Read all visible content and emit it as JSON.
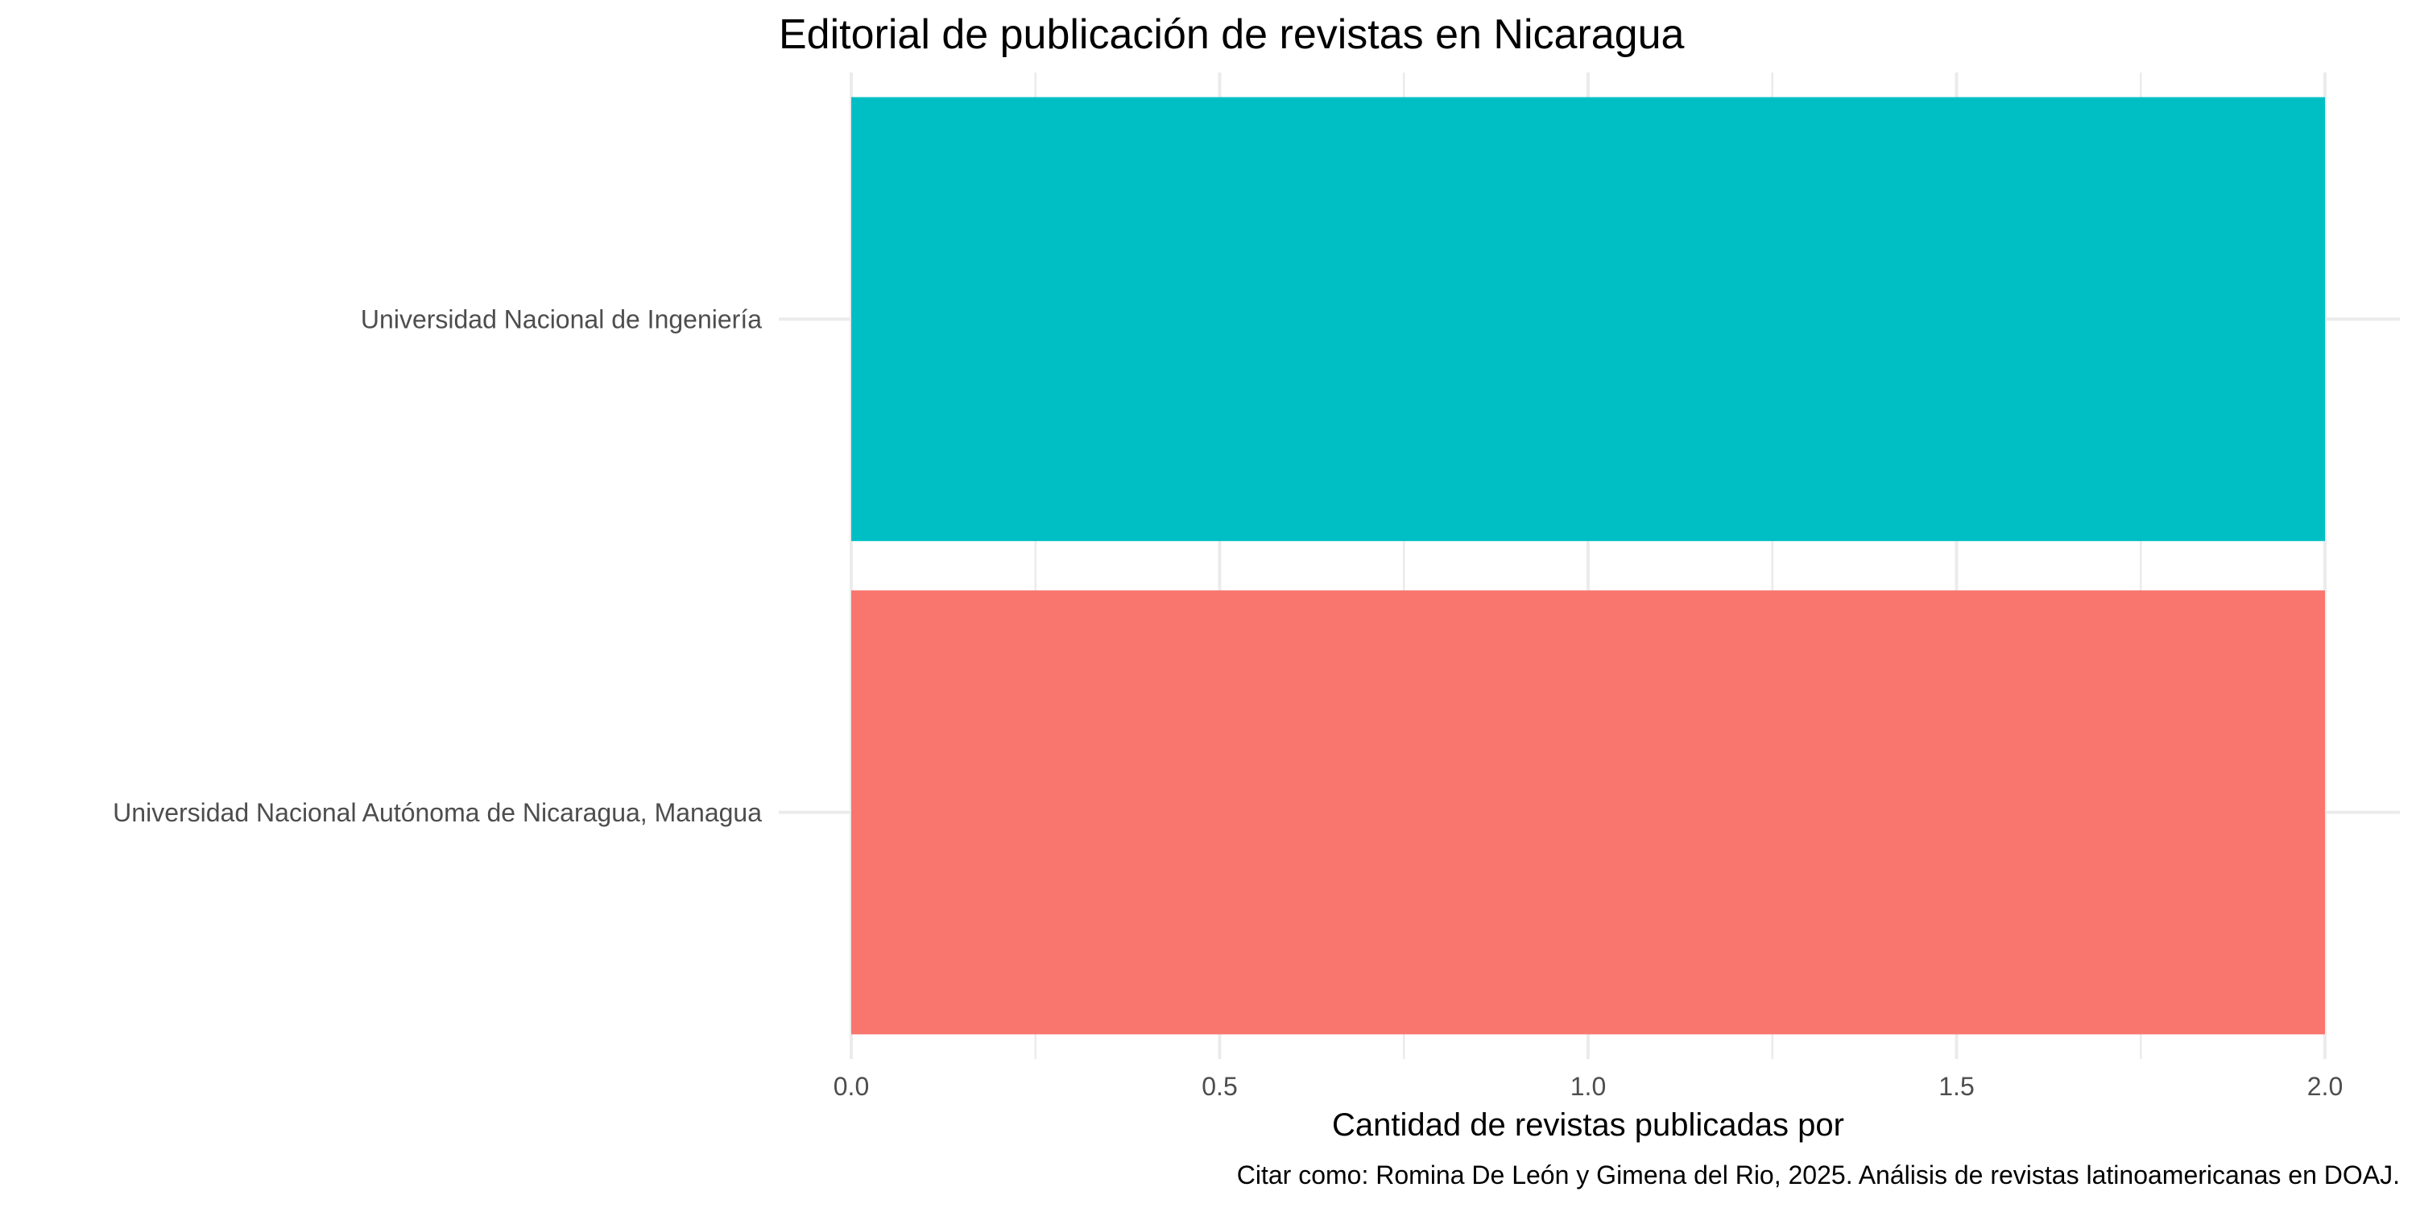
{
  "chart_data": {
    "type": "bar",
    "orientation": "horizontal",
    "title": "Editorial de publicación de revistas en Nicaragua",
    "xlabel": "Cantidad de revistas publicadas por",
    "ylabel": "",
    "caption": "Citar como: Romina De León y Gimena del Rio, 2025. Análisis de revistas latinoamericanas en DOAJ.",
    "categories": [
      "Universidad Nacional de Ingeniería",
      "Universidad Nacional Autónoma de Nicaragua, Managua"
    ],
    "values": [
      2,
      2
    ],
    "colors": [
      "#00BFC4",
      "#F8766D"
    ],
    "xlim": [
      0,
      2
    ],
    "xticks": [
      "0.0",
      "0.5",
      "1.0",
      "1.5",
      "2.0"
    ],
    "xtick_values": [
      0,
      0.5,
      1,
      1.5,
      2
    ],
    "grid": true,
    "legend": "none",
    "background": "#ffffff"
  }
}
